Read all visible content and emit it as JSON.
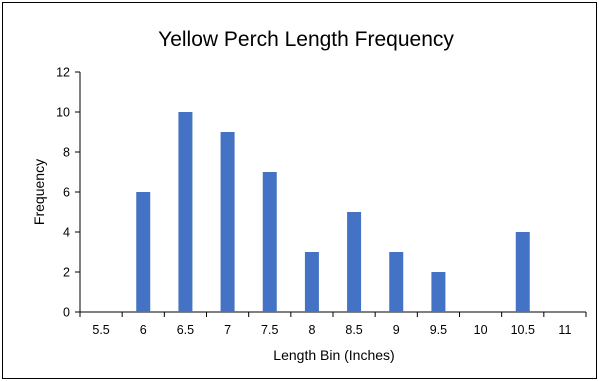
{
  "chart_data": {
    "type": "bar",
    "title": "Yellow Perch Length Frequency",
    "xlabel": "Length Bin (Inches)",
    "ylabel": "Frequency",
    "categories": [
      "5.5",
      "6",
      "6.5",
      "7",
      "7.5",
      "8",
      "8.5",
      "9",
      "9.5",
      "10",
      "10.5",
      "11"
    ],
    "values": [
      0,
      6,
      10,
      9,
      7,
      3,
      5,
      3,
      2,
      0,
      4,
      0
    ],
    "ylim": [
      0,
      12
    ],
    "yticks": [
      "0",
      "2",
      "4",
      "6",
      "8",
      "10",
      "12"
    ],
    "grid": false,
    "legend": "none",
    "bar_color": "#4472C4"
  }
}
